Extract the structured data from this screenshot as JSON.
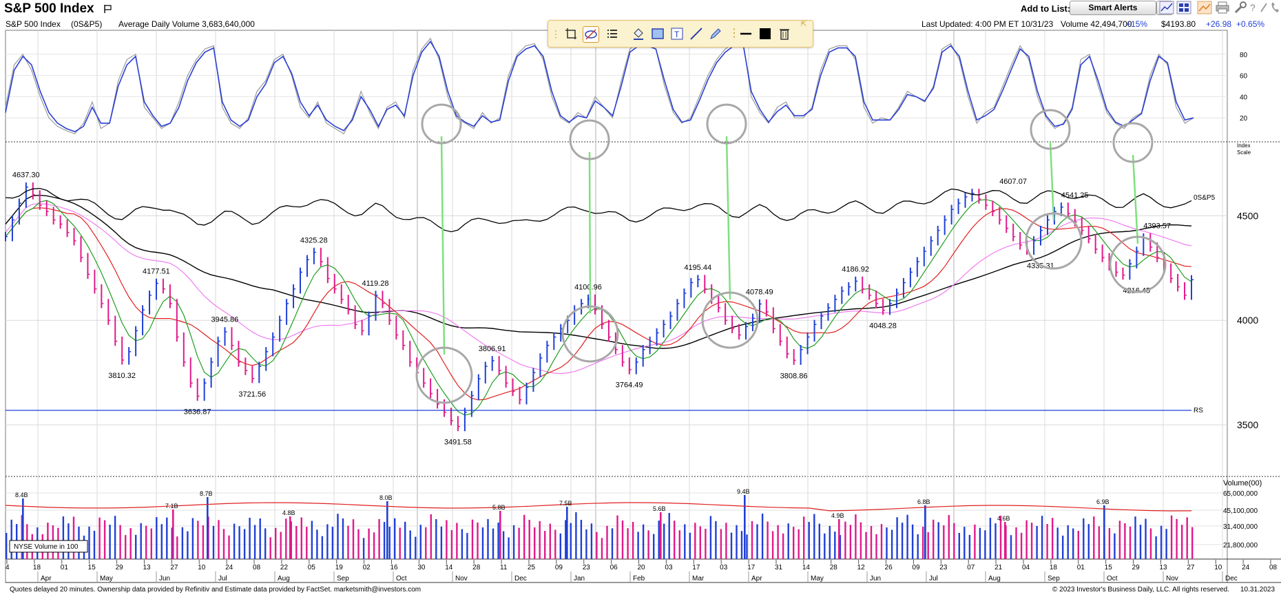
{
  "header": {
    "title": "S&P 500 Index",
    "add_to_list_label": "Add to List:",
    "smart_alerts": "Smart Alerts"
  },
  "info_bar": {
    "symbol": "S&P 500 Index",
    "ticker": "(0S&P5)",
    "avg_volume": "Average Daily Volume 3,683,640,000",
    "last_updated": "Last Updated: 4:00 PM ET 10/31/23",
    "volume": "Volume 42,494,700",
    "volume_change": "+15%",
    "price": "$4193.80",
    "price_change": "+26.98",
    "pct_change": "+0.65%",
    "colors": {
      "up": "#1f3fd6"
    }
  },
  "drawing_toolbar": {
    "tools": [
      "crosshair-icon",
      "hide-drawings-icon",
      "list-icon",
      "paint-bucket-icon",
      "rectangle-icon",
      "text-icon",
      "line-icon",
      "pencil-icon",
      "horizontal-line-icon",
      "color-swatch-icon",
      "trash-icon"
    ]
  },
  "chart_data": [
    {
      "type": "line",
      "title": "",
      "panel": "stochastic",
      "yticks": [
        20,
        40,
        60,
        80
      ],
      "ylim": [
        0,
        100
      ],
      "series": [
        {
          "values": [
            30,
            70,
            80,
            65,
            40,
            20,
            12,
            8,
            5,
            15,
            35,
            10,
            15,
            55,
            75,
            80,
            30,
            20,
            10,
            15,
            35,
            60,
            75,
            85,
            88,
            30,
            15,
            10,
            20,
            45,
            55,
            75,
            80,
            60,
            30,
            20,
            35,
            15,
            10,
            5,
            20,
            45,
            25,
            10,
            30,
            35,
            20,
            65,
            85,
            95,
            75,
            40,
            20,
            15,
            10,
            25,
            15,
            20,
            60,
            80,
            88,
            90,
            75,
            40,
            20,
            15,
            25,
            20,
            40,
            30,
            20,
            55,
            85,
            90,
            90,
            85,
            50,
            25,
            15,
            20,
            40,
            60,
            75,
            85,
            90,
            95,
            40,
            25,
            15,
            30,
            35,
            20,
            20,
            30,
            65,
            85,
            88,
            88,
            75,
            30,
            15,
            20,
            18,
            30,
            45,
            40,
            35,
            50,
            85,
            90,
            75,
            40,
            15,
            25,
            30,
            50,
            70,
            88,
            75,
            40,
            20,
            10,
            15,
            30,
            75,
            80,
            50,
            25,
            15,
            10,
            20,
            25,
            60,
            80,
            70,
            30,
            15,
            20
          ]
        },
        {
          "values": [
            25,
            65,
            78,
            70,
            45,
            25,
            15,
            10,
            7,
            12,
            30,
            15,
            15,
            50,
            70,
            78,
            35,
            22,
            12,
            15,
            30,
            55,
            72,
            82,
            86,
            35,
            18,
            12,
            18,
            40,
            52,
            72,
            78,
            62,
            35,
            22,
            32,
            18,
            12,
            8,
            18,
            40,
            28,
            12,
            28,
            32,
            22,
            60,
            82,
            92,
            78,
            45,
            22,
            16,
            12,
            22,
            16,
            18,
            55,
            78,
            85,
            88,
            78,
            45,
            22,
            16,
            22,
            20,
            36,
            30,
            22,
            50,
            82,
            88,
            88,
            85,
            55,
            28,
            16,
            18,
            36,
            56,
            72,
            82,
            88,
            92,
            45,
            28,
            16,
            26,
            32,
            22,
            22,
            28,
            60,
            82,
            86,
            86,
            78,
            35,
            18,
            18,
            18,
            28,
            42,
            40,
            36,
            48,
            82,
            88,
            78,
            45,
            18,
            22,
            28,
            46,
            66,
            85,
            78,
            45,
            22,
            12,
            14,
            28,
            70,
            78,
            55,
            28,
            16,
            12,
            18,
            24,
            55,
            78,
            72,
            35,
            18,
            20
          ]
        }
      ]
    },
    {
      "type": "candlestick",
      "title": "",
      "panel": "price",
      "yticks": [
        3500,
        4000,
        4500
      ],
      "xlabels_months": [
        "Apr",
        "May",
        "Jun",
        "Jul",
        "Aug",
        "Sep",
        "Oct",
        "Nov",
        "Dec",
        "Jan",
        "Feb",
        "Mar",
        "Apr",
        "May",
        "Jun",
        "Jul",
        "Aug",
        "Sep",
        "Oct",
        "Nov",
        "Dec"
      ],
      "xlabels_days": [
        "4",
        "18",
        "01",
        "15",
        "29",
        "13",
        "27",
        "10",
        "24",
        "08",
        "22",
        "05",
        "19",
        "02",
        "16",
        "30",
        "14",
        "28",
        "11",
        "25",
        "09",
        "23",
        "06",
        "20",
        "03",
        "17",
        "03",
        "17",
        "31",
        "14",
        "28",
        "12",
        "26",
        "09",
        "23",
        "07",
        "21",
        "04",
        "18",
        "01",
        "15",
        "29",
        "13",
        "27",
        "10",
        "24",
        "08"
      ],
      "price_series": [
        4400,
        4480,
        4560,
        4637,
        4600,
        4550,
        4520,
        4480,
        4460,
        4420,
        4380,
        4300,
        4220,
        4150,
        4080,
        4000,
        3900,
        3810,
        3850,
        3950,
        4050,
        4120,
        4177,
        4150,
        4080,
        3920,
        3800,
        3700,
        3637,
        3700,
        3800,
        3900,
        3945,
        3880,
        3800,
        3760,
        3722,
        3780,
        3850,
        3920,
        4000,
        4080,
        4150,
        4230,
        4290,
        4325,
        4280,
        4200,
        4150,
        4100,
        4050,
        3980,
        3950,
        4020,
        4119,
        4080,
        4000,
        3930,
        3880,
        3800,
        3750,
        3700,
        3650,
        3600,
        3560,
        3520,
        3492,
        3560,
        3640,
        3720,
        3780,
        3807,
        3760,
        3700,
        3660,
        3620,
        3680,
        3750,
        3820,
        3880,
        3920,
        3960,
        4000,
        4050,
        4080,
        4101,
        4050,
        3980,
        3920,
        3860,
        3800,
        3764,
        3800,
        3860,
        3900,
        3940,
        3980,
        4020,
        4080,
        4130,
        4180,
        4195,
        4150,
        4100,
        4060,
        4000,
        3960,
        3930,
        3970,
        4010,
        4078,
        4040,
        3960,
        3900,
        3840,
        3809,
        3860,
        3920,
        3980,
        4020,
        4060,
        4100,
        4140,
        4160,
        4187,
        4150,
        4120,
        4080,
        4048,
        4080,
        4130,
        4180,
        4230,
        4280,
        4330,
        4380,
        4430,
        4480,
        4530,
        4560,
        4590,
        4607,
        4580,
        4550,
        4520,
        4480,
        4440,
        4400,
        4360,
        4335,
        4380,
        4430,
        4480,
        4520,
        4541,
        4510,
        4470,
        4430,
        4390,
        4340,
        4300,
        4260,
        4230,
        4216,
        4270,
        4330,
        4394,
        4350,
        4300,
        4250,
        4200,
        4160,
        4120,
        4194
      ],
      "annotations": [
        {
          "label": "4637.30",
          "value": 4637.3
        },
        {
          "label": "3810.32",
          "value": 3810.32
        },
        {
          "label": "4177.51",
          "value": 4177.51
        },
        {
          "label": "3636.87",
          "value": 3636.87
        },
        {
          "label": "3945.86",
          "value": 3945.86
        },
        {
          "label": "3721.56",
          "value": 3721.56
        },
        {
          "label": "4325.28",
          "value": 4325.28
        },
        {
          "label": "4119.28",
          "value": 4119.28
        },
        {
          "label": "3806.91",
          "value": 3806.91
        },
        {
          "label": "3491.58",
          "value": 3491.58
        },
        {
          "label": "4100.96",
          "value": 4100.96
        },
        {
          "label": "3764.49",
          "value": 3764.49
        },
        {
          "label": "4195.44",
          "value": 4195.44
        },
        {
          "label": "4078.49",
          "value": 4078.49
        },
        {
          "label": "3808.86",
          "value": 3808.86
        },
        {
          "label": "4186.92",
          "value": 4186.92
        },
        {
          "label": "4048.28",
          "value": 4048.28
        },
        {
          "label": "4607.07",
          "value": 4607.07
        },
        {
          "label": "4541.25",
          "value": 4541.25
        },
        {
          "label": "4335.31",
          "value": 4335.31
        },
        {
          "label": "4393.57",
          "value": 4393.57
        },
        {
          "label": "4216.45",
          "value": 4216.45
        }
      ],
      "side_labels": {
        "index_scale": "Index Scale",
        "rs_line_top": "0S&P5",
        "rs_line_bottom": "RS"
      },
      "colors": {
        "up": "#1f3fd6",
        "down": "#e0198a",
        "ma10": "#1f9e1f",
        "ma21": "#e01f1f",
        "ma50": "#f07cf0",
        "ma200": "#000000",
        "rs": "#1f3fd6"
      }
    },
    {
      "type": "bar",
      "title": "",
      "panel": "volume",
      "ylabel": "Volume(00)",
      "yticks": [
        "65,000,000",
        "45,100,000",
        "31,400,000",
        "21,800,000"
      ],
      "legend": "NYSE Volume in 100",
      "annotations": [
        "8.4B",
        "7.1B",
        "8.7B",
        "4.8B",
        "8.0B",
        "5.8B",
        "7.5B",
        "5.6B",
        "9.4B",
        "4.9B",
        "6.8B",
        "4.6B",
        "6.9B"
      ],
      "colors": {
        "up": "#1f3fd6",
        "down": "#e0198a",
        "avg": "#e01f1f"
      }
    }
  ],
  "footer": {
    "note": "Quotes delayed 20 minutes. Ownership data provided by Refinitiv and Estimate data provided by FactSet. marketsmith@investors.com",
    "copyright": "© 2023 Investor's Business Daily, LLC. All rights reserved.",
    "date": "10.31.2023"
  }
}
